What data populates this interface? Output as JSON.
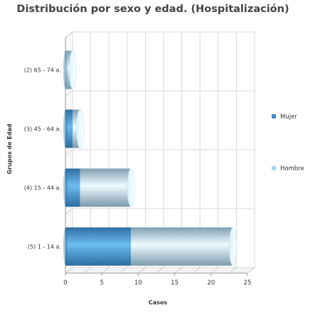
{
  "chart_data": {
    "type": "bar",
    "orientation": "horizontal",
    "stacked": true,
    "style": "3d-cylinder",
    "title": "Distribución por sexo y edad. (Hospitalización)",
    "xlabel": "Casos",
    "ylabel": "Grupos de Edad",
    "categories": [
      "(2) 65 - 74 a.",
      "(3) 45 - 64 a.",
      "(4) 15 - 44 a.",
      "(5) 1 - 14 a."
    ],
    "series": [
      {
        "name": "Mujer",
        "values": [
          0,
          1,
          2,
          9
        ],
        "color": "#3d8bcd"
      },
      {
        "name": "Hombre",
        "values": [
          1,
          1,
          7,
          14
        ],
        "color": "#a6d8f5"
      }
    ],
    "xlim": [
      0,
      25
    ],
    "xticks": [
      0,
      5,
      10,
      15,
      20,
      25
    ],
    "grid": true,
    "legend_position": "right"
  }
}
